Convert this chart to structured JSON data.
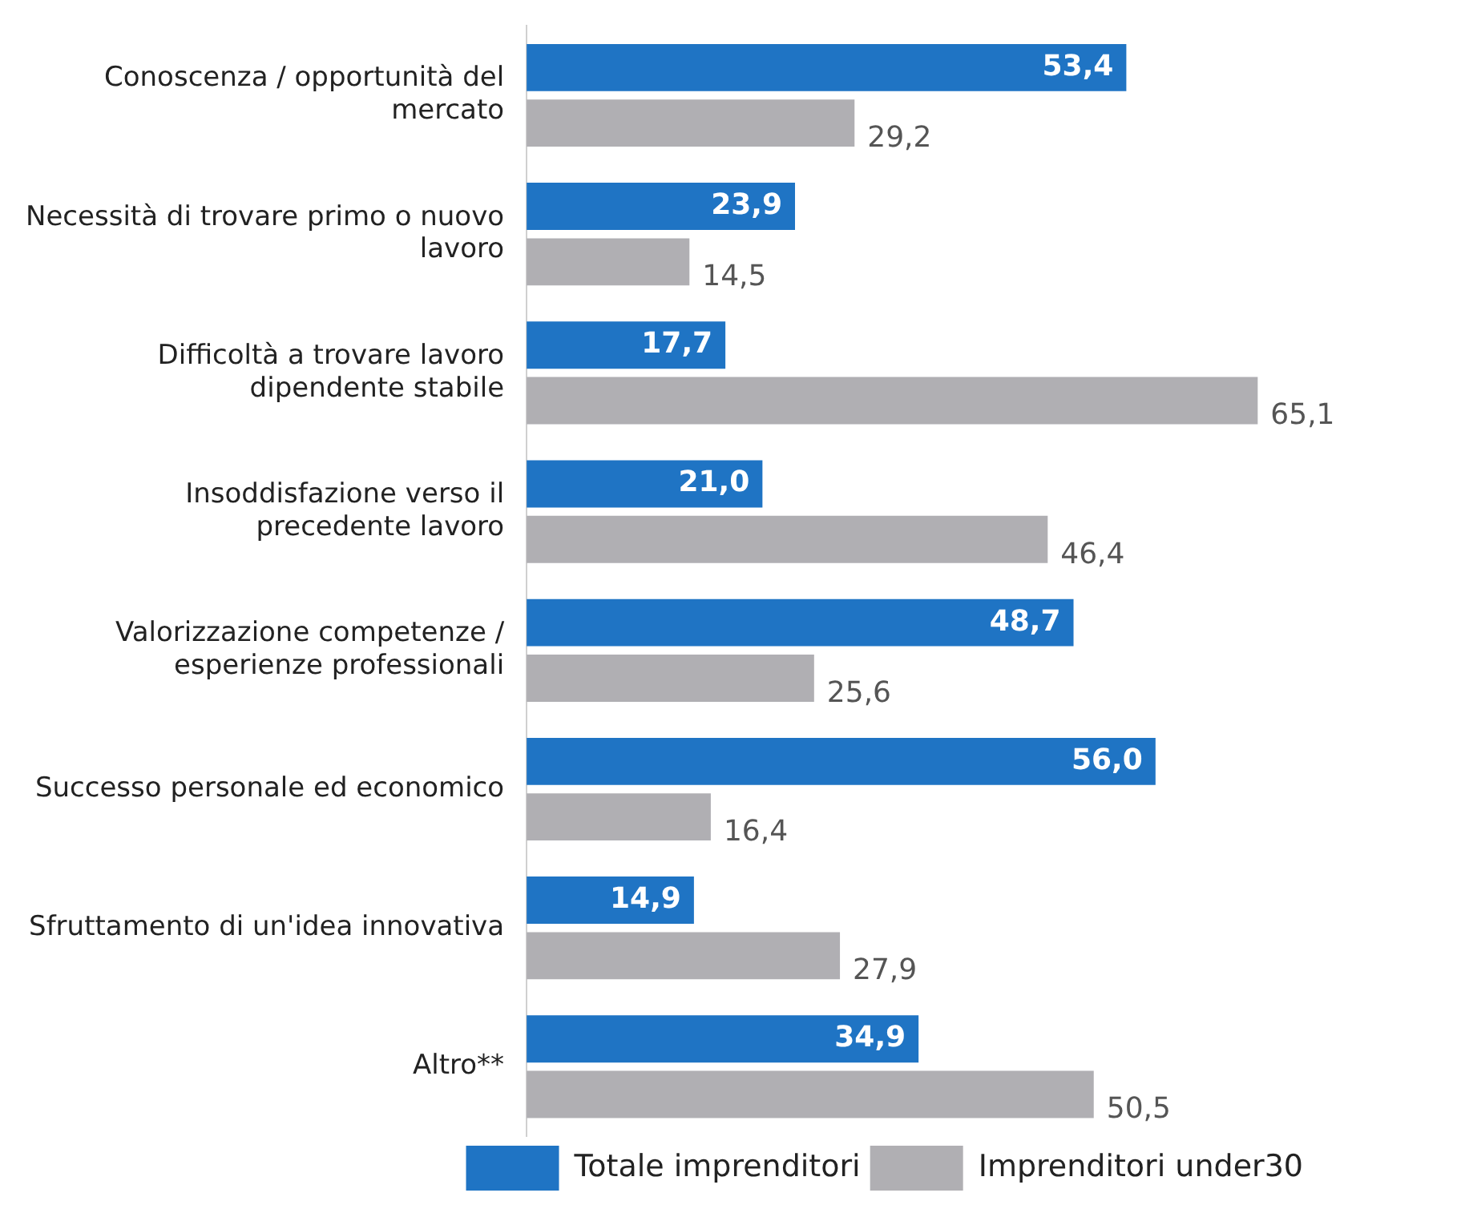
{
  "chart_data": {
    "type": "bar",
    "orientation": "horizontal",
    "categories": [
      "Conoscenza / opportunità del mercato",
      "Necessità di trovare primo o nuovo lavoro",
      "Difficoltà a trovare lavoro dipendente stabile",
      "Insoddisfazione verso il precedente lavoro",
      "Valorizzazione competenze / esperienze professionali",
      "Successo personale ed economico",
      "Sfruttamento di un'idea innovativa",
      "Altro**"
    ],
    "series": [
      {
        "name": "Totale imprenditori",
        "color": "#1f74c4",
        "values": [
          53.4,
          23.9,
          17.7,
          21.0,
          48.7,
          56.0,
          14.9,
          34.9
        ],
        "value_labels": [
          "53,4",
          "23,9",
          "17,7",
          "21,0",
          "48,7",
          "56,0",
          "14,9",
          "34,9"
        ]
      },
      {
        "name": "Imprenditori under30",
        "color": "#b0afb3",
        "values": [
          29.2,
          14.5,
          65.1,
          46.4,
          25.6,
          16.4,
          27.9,
          50.5
        ],
        "value_labels": [
          "29,2",
          "14,5",
          "65,1",
          "46,4",
          "25,6",
          "16,4",
          "27,9",
          "50,5"
        ]
      }
    ],
    "legend": "bottom right"
  }
}
